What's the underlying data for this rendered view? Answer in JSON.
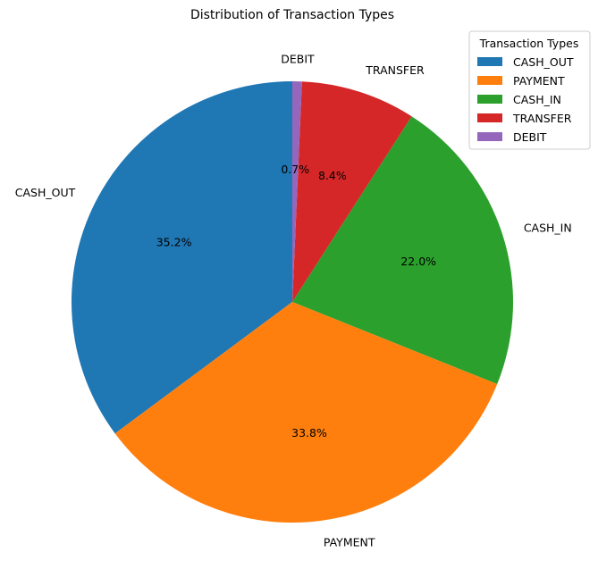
{
  "chart_data": {
    "type": "pie",
    "title": "Distribution of Transaction Types",
    "start_angle_deg": 90,
    "direction": "counterclockwise",
    "slices": [
      {
        "label": "CASH_OUT",
        "value": 35.2,
        "pct_label": "35.2%",
        "color": "#1f77b4"
      },
      {
        "label": "PAYMENT",
        "value": 33.8,
        "pct_label": "33.8%",
        "color": "#ff7f0e"
      },
      {
        "label": "CASH_IN",
        "value": 22.0,
        "pct_label": "22.0%",
        "color": "#2ca02c"
      },
      {
        "label": "TRANSFER",
        "value": 8.4,
        "pct_label": "8.4%",
        "color": "#d62728"
      },
      {
        "label": "DEBIT",
        "value": 0.7,
        "pct_label": "0.7%",
        "color": "#9467bd"
      }
    ],
    "legend": {
      "title": "Transaction Types",
      "placement": "top-right"
    }
  }
}
